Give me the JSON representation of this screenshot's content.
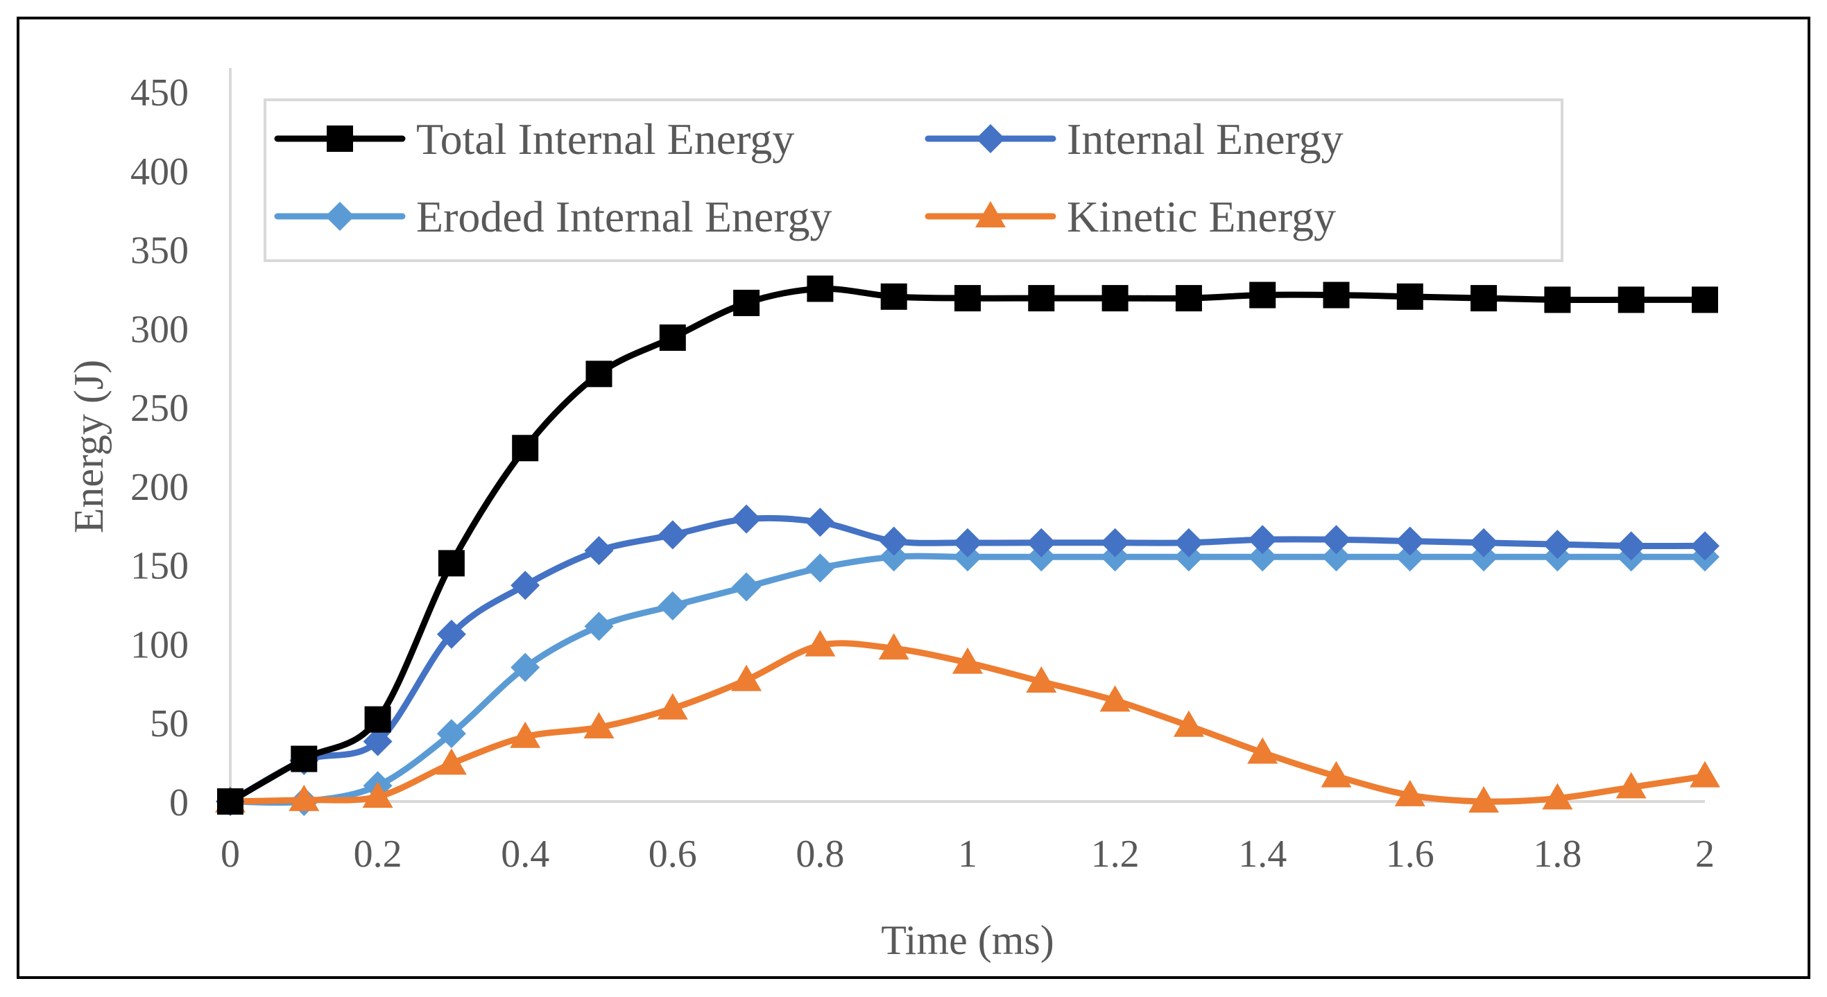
{
  "chart_data": {
    "type": "line",
    "title": "",
    "xlabel": "Time (ms)",
    "ylabel": "Energy (J)",
    "xlim": [
      0,
      2
    ],
    "ylim": [
      0,
      450
    ],
    "x_ticks": [
      "0",
      "0.2",
      "0.4",
      "0.6",
      "0.8",
      "1",
      "1.2",
      "1.4",
      "1.6",
      "1.8",
      "2"
    ],
    "y_ticks": [
      "0",
      "50",
      "100",
      "150",
      "200",
      "250",
      "300",
      "350",
      "400",
      "450"
    ],
    "x": [
      0,
      0.1,
      0.2,
      0.3,
      0.4,
      0.5,
      0.6,
      0.7,
      0.8,
      0.9,
      1.0,
      1.1,
      1.2,
      1.3,
      1.4,
      1.5,
      1.6,
      1.7,
      1.8,
      1.9,
      2.0
    ],
    "legend_position": "top-left inside",
    "series": [
      {
        "name": "Total Internal Energy",
        "color": "#000000",
        "marker": "square",
        "values": [
          0,
          27,
          52,
          151,
          224,
          271,
          294,
          316,
          325,
          320,
          319,
          319,
          319,
          319,
          321,
          321,
          320,
          319,
          318,
          318,
          318
        ]
      },
      {
        "name": "Internal Energy",
        "color": "#4472C4",
        "marker": "diamond",
        "values": [
          0,
          26,
          38,
          106,
          137,
          159,
          169,
          179,
          177,
          165,
          164,
          164,
          164,
          164,
          166,
          166,
          165,
          164,
          163,
          162,
          162
        ]
      },
      {
        "name": "Eroded Internal Energy",
        "color": "#5B9BD5",
        "marker": "diamond",
        "values": [
          0,
          0,
          10,
          43,
          85,
          111,
          124,
          136,
          148,
          155,
          155,
          155,
          155,
          155,
          155,
          155,
          155,
          155,
          155,
          155,
          155
        ]
      },
      {
        "name": "Kinetic Energy",
        "color": "#ED7D31",
        "marker": "triangle",
        "values": [
          0,
          1,
          3,
          24,
          41,
          47,
          59,
          77,
          99,
          97,
          88,
          76,
          64,
          48,
          31,
          16,
          4,
          0,
          2,
          9,
          16
        ]
      }
    ]
  }
}
